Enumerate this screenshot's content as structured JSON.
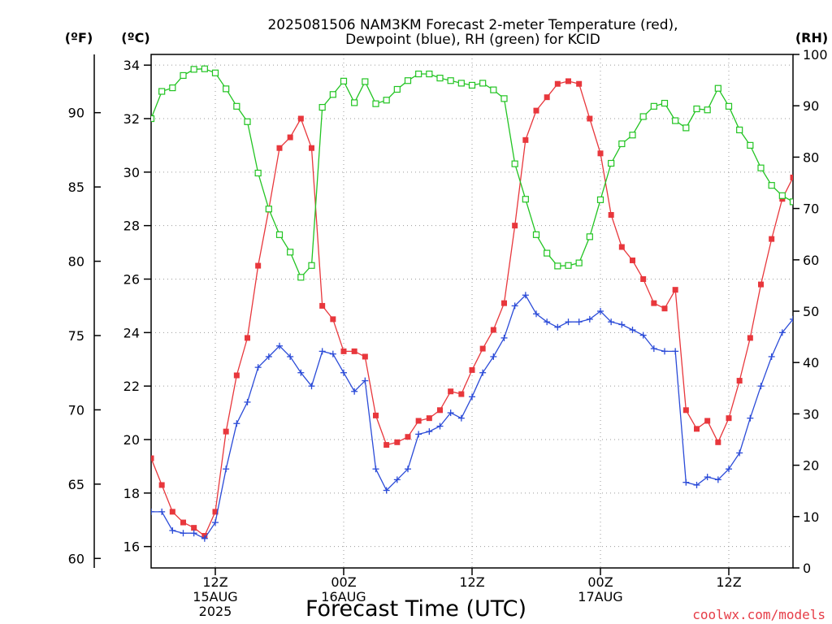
{
  "chart_data": {
    "type": "line",
    "title_line1": "2025081506 NAM3KM Forecast 2-meter Temperature (red),",
    "title_line2": "Dewpoint (blue), RH (green) for KCID",
    "xlabel": "Forecast Time (UTC)",
    "credit": "coolwx.com/models",
    "units": {
      "fahrenheit": "(ºF)",
      "celsius": "(ºC)",
      "rh": "(RH)"
    },
    "x_unit": "hours after 2025-08-15 06Z",
    "xlim": [
      0,
      60
    ],
    "celsius_ylim": [
      15.2,
      34.4
    ],
    "rh_ylim": [
      0,
      100
    ],
    "celsius_ticks": [
      16,
      18,
      20,
      22,
      24,
      26,
      28,
      30,
      32,
      34
    ],
    "fahrenheit_ticks": [
      60,
      65,
      70,
      75,
      80,
      85,
      90
    ],
    "rh_ticks": [
      0,
      10,
      20,
      30,
      40,
      50,
      60,
      70,
      80,
      90,
      100
    ],
    "x_ticks": [
      {
        "x": 6,
        "lines": [
          "12Z",
          "15AUG",
          "2025"
        ]
      },
      {
        "x": 18,
        "lines": [
          "00Z",
          "16AUG"
        ]
      },
      {
        "x": 30,
        "lines": [
          "12Z"
        ]
      },
      {
        "x": 42,
        "lines": [
          "00Z",
          "17AUG"
        ]
      },
      {
        "x": 54,
        "lines": [
          "12Z"
        ]
      }
    ],
    "grid": true,
    "x": [
      0,
      1,
      2,
      3,
      4,
      5,
      6,
      7,
      8,
      9,
      10,
      11,
      12,
      13,
      14,
      15,
      16,
      17,
      18,
      19,
      20,
      21,
      22,
      23,
      24,
      25,
      26,
      27,
      28,
      29,
      30,
      31,
      32,
      33,
      34,
      35,
      36,
      37,
      38,
      39,
      40,
      41,
      42,
      43,
      44,
      45,
      46,
      47,
      48,
      49,
      50,
      51,
      52,
      53,
      54,
      55,
      56,
      57,
      58,
      59,
      60
    ],
    "series": [
      {
        "name": "2-meter Temperature",
        "unit": "°C",
        "color": "#e8373c",
        "marker": "filled-square",
        "values": [
          19.3,
          18.3,
          17.3,
          16.9,
          16.7,
          16.4,
          17.3,
          20.3,
          22.4,
          23.8,
          26.5,
          28.6,
          30.9,
          31.3,
          32.0,
          30.9,
          25.0,
          24.5,
          23.3,
          23.3,
          23.1,
          20.9,
          19.8,
          19.9,
          20.1,
          20.7,
          20.8,
          21.1,
          21.8,
          21.7,
          22.6,
          23.4,
          24.1,
          25.1,
          28.0,
          31.2,
          32.3,
          32.8,
          33.3,
          33.4,
          33.3,
          32.0,
          30.7,
          28.4,
          27.2,
          26.7,
          26.0,
          25.1,
          24.9,
          25.6,
          21.1,
          20.4,
          20.7,
          19.9,
          20.8,
          22.2,
          23.8,
          25.8,
          27.5,
          29.0,
          29.8
        ]
      },
      {
        "name": "Dewpoint",
        "unit": "°C",
        "color": "#2b4bd8",
        "marker": "plus",
        "values": [
          17.3,
          17.3,
          16.6,
          16.5,
          16.5,
          16.3,
          16.9,
          18.9,
          20.6,
          21.4,
          22.7,
          23.1,
          23.5,
          23.1,
          22.5,
          22.0,
          23.3,
          23.2,
          22.5,
          21.8,
          22.2,
          18.9,
          18.1,
          18.5,
          18.9,
          20.2,
          20.3,
          20.5,
          21.0,
          20.8,
          21.6,
          22.5,
          23.1,
          23.8,
          25.0,
          25.4,
          24.7,
          24.4,
          24.2,
          24.4,
          24.4,
          24.5,
          24.8,
          24.4,
          24.3,
          24.1,
          23.9,
          23.4,
          23.3,
          23.3,
          18.4,
          18.3,
          18.6,
          18.5,
          18.9,
          19.5,
          20.8,
          22.0,
          23.1,
          24.0,
          24.5
        ]
      },
      {
        "name": "RH",
        "unit": "%",
        "color": "#22c422",
        "marker": "open-square",
        "values": [
          87.5,
          92.8,
          93.5,
          95.9,
          97.1,
          97.2,
          96.4,
          93.3,
          89.9,
          86.9,
          76.9,
          69.9,
          64.9,
          61.5,
          56.6,
          58.9,
          89.7,
          92.2,
          94.8,
          90.6,
          94.7,
          90.4,
          91.1,
          93.2,
          94.9,
          96.2,
          96.2,
          95.4,
          94.9,
          94.4,
          94.0,
          94.4,
          93.1,
          91.4,
          78.7,
          71.8,
          64.9,
          61.3,
          58.8,
          58.9,
          59.4,
          64.5,
          71.7,
          78.8,
          82.6,
          84.3,
          87.9,
          89.9,
          90.5,
          87.1,
          85.7,
          89.4,
          89.2,
          93.4,
          89.9,
          85.3,
          82.3,
          77.9,
          74.5,
          72.5,
          71.3
        ]
      }
    ]
  }
}
